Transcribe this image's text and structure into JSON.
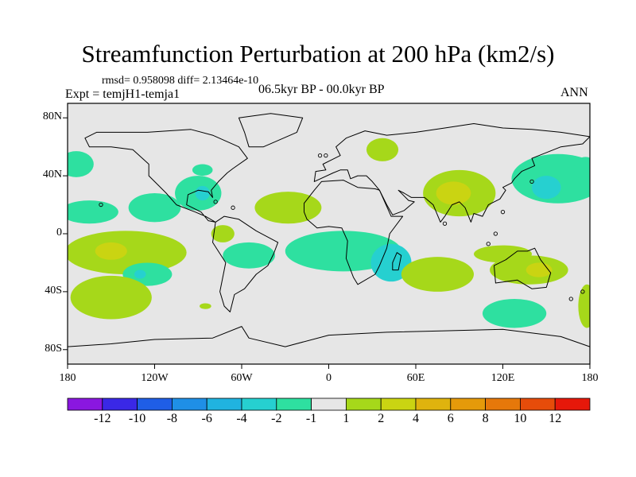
{
  "chart_data": {
    "type": "contour-map",
    "title": "Streamfunction Perturbation at 200 hPa (km2/s)",
    "stats": "rmsd= 0.958098 diff= 2.13464e-10",
    "left_label": "Expt = temjH1-temja1",
    "center_label": "06.5kyr BP - 00.0kyr BP",
    "right_label": "ANN",
    "x_ticks": [
      "180",
      "120W",
      "60W",
      "0",
      "60E",
      "120E",
      "180"
    ],
    "x_tick_values": [
      -180,
      -120,
      -60,
      0,
      60,
      120,
      180
    ],
    "y_ticks": [
      "80N",
      "40N",
      "0",
      "40S",
      "80S"
    ],
    "y_tick_values": [
      80,
      40,
      0,
      -40,
      -80
    ],
    "lon_range": [
      -180,
      180
    ],
    "lat_range": [
      -90,
      90
    ],
    "colorbar": {
      "levels": [
        "-12",
        "-10",
        "-8",
        "-6",
        "-4",
        "-2",
        "-1",
        "1",
        "2",
        "4",
        "6",
        "8",
        "10",
        "12"
      ],
      "colors": [
        "#8a17e0",
        "#3a28e6",
        "#1f5ee6",
        "#1f8fe6",
        "#20b3e0",
        "#26d0d0",
        "#2ee0a0",
        "#e6e6e6",
        "#a6d81a",
        "#cad412",
        "#dfb30e",
        "#e59a0a",
        "#e6780a",
        "#e64c0a",
        "#e6180a"
      ]
    },
    "anomalies": [
      {
        "lon": -174,
        "lat": 48,
        "rlon": 12,
        "rlat": 9,
        "level": -1
      },
      {
        "lon": -165,
        "lat": 15,
        "rlon": 20,
        "rlat": 8,
        "level": -1
      },
      {
        "lon": -120,
        "lat": 18,
        "rlon": 18,
        "rlat": 10,
        "level": -1
      },
      {
        "lon": -90,
        "lat": 28,
        "rlon": 16,
        "rlat": 12,
        "level": -1
      },
      {
        "lon": -87,
        "lat": 28,
        "rlon": 5,
        "rlat": 5,
        "level": -2
      },
      {
        "lon": -73,
        "lat": 0,
        "rlon": 8,
        "rlat": 6,
        "level": 1
      },
      {
        "lon": -140,
        "lat": -13,
        "rlon": 42,
        "rlat": 15,
        "level": 1
      },
      {
        "lon": -150,
        "lat": -12,
        "rlon": 11,
        "rlat": 6,
        "level": 2
      },
      {
        "lon": -125,
        "lat": -28,
        "rlon": 17,
        "rlat": 8,
        "level": -1
      },
      {
        "lon": -130,
        "lat": -28,
        "rlon": 4,
        "rlat": 3,
        "level": -2
      },
      {
        "lon": -150,
        "lat": -44,
        "rlon": 28,
        "rlat": 15,
        "level": 1
      },
      {
        "lon": -55,
        "lat": -15,
        "rlon": 18,
        "rlat": 9,
        "level": -1
      },
      {
        "lon": -28,
        "lat": 18,
        "rlon": 23,
        "rlat": 11,
        "level": 1
      },
      {
        "lon": -87,
        "lat": 44,
        "rlon": 7,
        "rlat": 4,
        "level": -1
      },
      {
        "lon": 37,
        "lat": 58,
        "rlon": 11,
        "rlat": 8,
        "level": 1
      },
      {
        "lon": 10,
        "lat": -12,
        "rlon": 40,
        "rlat": 14,
        "level": -1
      },
      {
        "lon": 43,
        "lat": -20,
        "rlon": 14,
        "rlat": 13,
        "level": -2
      },
      {
        "lon": 90,
        "lat": 28,
        "rlon": 25,
        "rlat": 16,
        "level": 1
      },
      {
        "lon": 86,
        "lat": 28,
        "rlon": 12,
        "rlat": 8,
        "level": 2
      },
      {
        "lon": 158,
        "lat": 38,
        "rlon": 32,
        "rlat": 17,
        "level": -1
      },
      {
        "lon": 150,
        "lat": 32,
        "rlon": 10,
        "rlat": 8,
        "level": -2
      },
      {
        "lon": 120,
        "lat": -14,
        "rlon": 20,
        "rlat": 6,
        "level": 1
      },
      {
        "lon": 138,
        "lat": -25,
        "rlon": 27,
        "rlat": 10,
        "level": 1
      },
      {
        "lon": 145,
        "lat": -25,
        "rlon": 9,
        "rlat": 5,
        "level": 2
      },
      {
        "lon": 75,
        "lat": -28,
        "rlon": 25,
        "rlat": 12,
        "level": 1
      },
      {
        "lon": 128,
        "lat": -55,
        "rlon": 22,
        "rlat": 10,
        "level": -1
      },
      {
        "lon": 178,
        "lat": -50,
        "rlon": 6,
        "rlat": 15,
        "level": 1
      },
      {
        "lon": 177,
        "lat": 45,
        "rlon": 8,
        "rlat": 8,
        "level": -1
      },
      {
        "lon": -148,
        "lat": -49,
        "rlon": 5,
        "rlat": 3,
        "level": 1
      },
      {
        "lon": -85,
        "lat": -50,
        "rlon": 4,
        "rlat": 2,
        "level": 1
      }
    ]
  }
}
